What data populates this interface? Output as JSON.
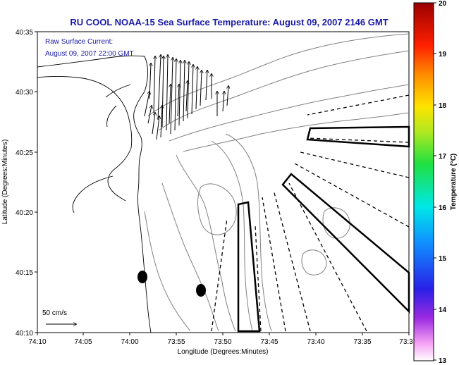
{
  "title": "RU COOL  NOAA-15  Sea Surface Temperature:  August 09, 2007 2146 GMT",
  "inset": {
    "line1": "Raw Surface Current:",
    "line2": "August 09, 2007 22:00 GMT"
  },
  "axes": {
    "xlabel": "Longitude (Degrees:Minutes)",
    "ylabel": "Latitude (Degrees:Minutes)",
    "xticks": [
      "74:10",
      "74:05",
      "74:00",
      "73:55",
      "73:50",
      "73:45",
      "73:40",
      "73:35",
      "73:3"
    ],
    "yticks": [
      "40:35",
      "40:30",
      "40:25",
      "40:20",
      "40:15",
      "40:10"
    ]
  },
  "scale_label": "50 cm/s",
  "colorbar": {
    "label": "Temperature (°C)",
    "ticks": [
      "20",
      "19",
      "18",
      "17",
      "16",
      "15",
      "14",
      "13"
    ],
    "min": 13,
    "max": 20
  }
}
